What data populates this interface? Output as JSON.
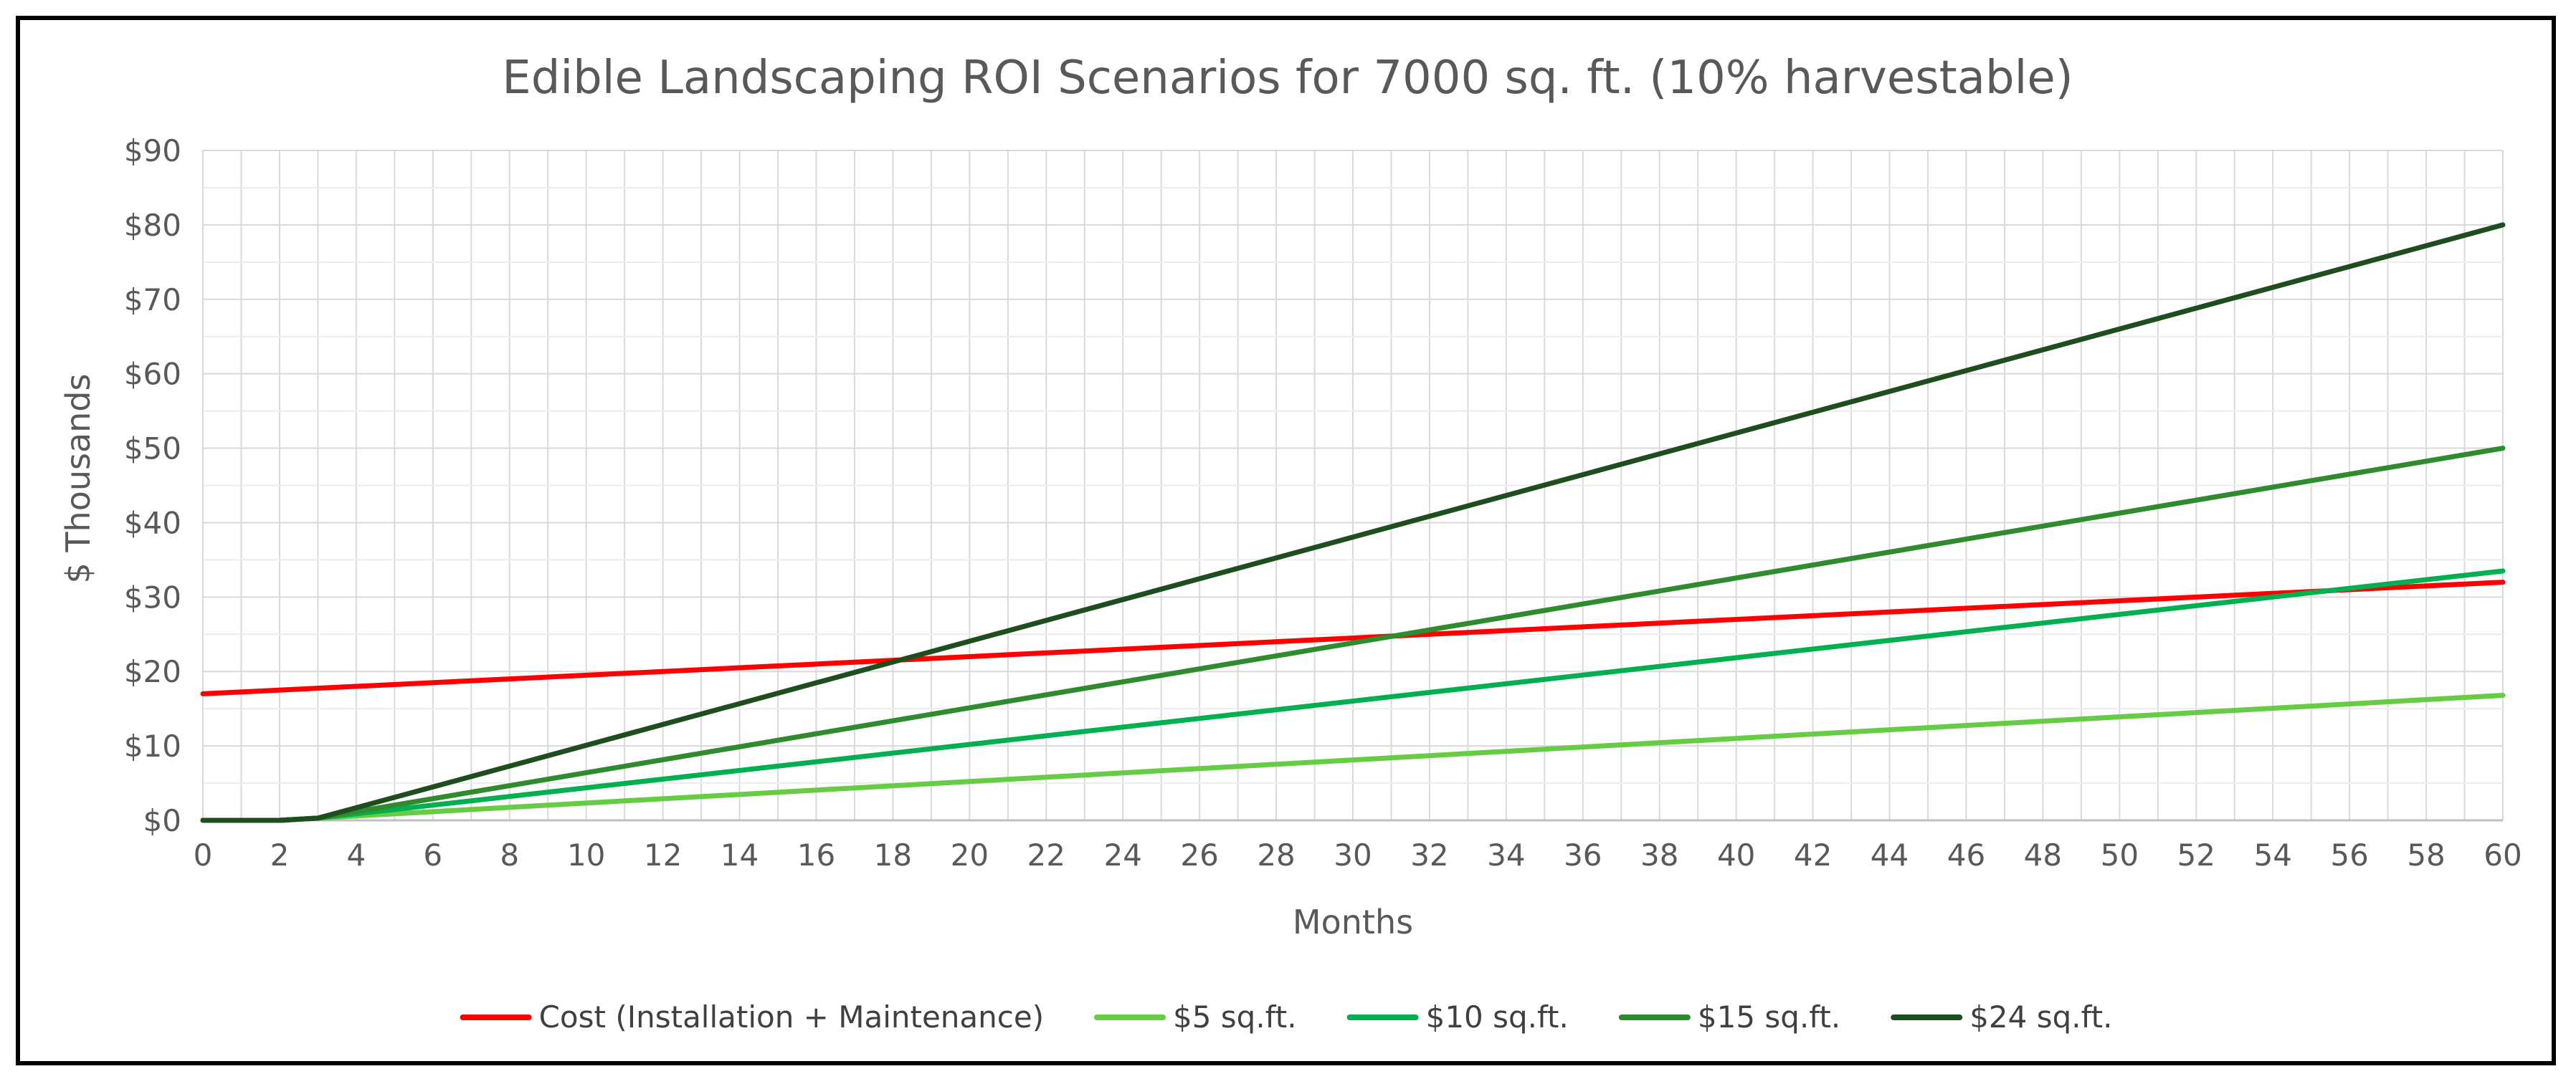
{
  "chart_data": {
    "type": "line",
    "title": "Edible Landscaping ROI Scenarios for 7000 sq. ft. (10% harvestable)",
    "xlabel": "Months",
    "ylabel": "$ Thousands",
    "xlim": [
      0,
      60
    ],
    "ylim": [
      0,
      90
    ],
    "x_ticks": [
      0,
      2,
      4,
      6,
      8,
      10,
      12,
      14,
      16,
      18,
      20,
      22,
      24,
      26,
      28,
      30,
      32,
      34,
      36,
      38,
      40,
      42,
      44,
      46,
      48,
      50,
      52,
      54,
      56,
      58,
      60
    ],
    "y_ticks": [
      0,
      10,
      20,
      30,
      40,
      50,
      60,
      70,
      80,
      90
    ],
    "y_tick_labels": [
      "$0",
      "$10",
      "$20",
      "$30",
      "$40",
      "$50",
      "$60",
      "$70",
      "$80",
      "$90"
    ],
    "grid": true,
    "legend_position": "bottom",
    "series": [
      {
        "name": "Cost (Installation + Maintenance)",
        "color": "#ff0000",
        "x": [
          0,
          60
        ],
        "y": [
          17,
          32
        ]
      },
      {
        "name": "$5 sq.ft.",
        "color": "#66cc44",
        "x": [
          0,
          2,
          3,
          60
        ],
        "y": [
          0,
          0,
          0.3,
          16.8
        ]
      },
      {
        "name": "$10 sq.ft.",
        "color": "#00b050",
        "x": [
          0,
          2,
          3,
          60
        ],
        "y": [
          0,
          0,
          0.3,
          33.5
        ]
      },
      {
        "name": "$15 sq.ft.",
        "color": "#2e8b2e",
        "x": [
          0,
          2,
          3,
          60
        ],
        "y": [
          0,
          0,
          0.3,
          50
        ]
      },
      {
        "name": "$24 sq.ft.",
        "color": "#1e4d1e",
        "x": [
          0,
          2,
          3,
          60
        ],
        "y": [
          0,
          0,
          0.3,
          80
        ]
      }
    ]
  }
}
